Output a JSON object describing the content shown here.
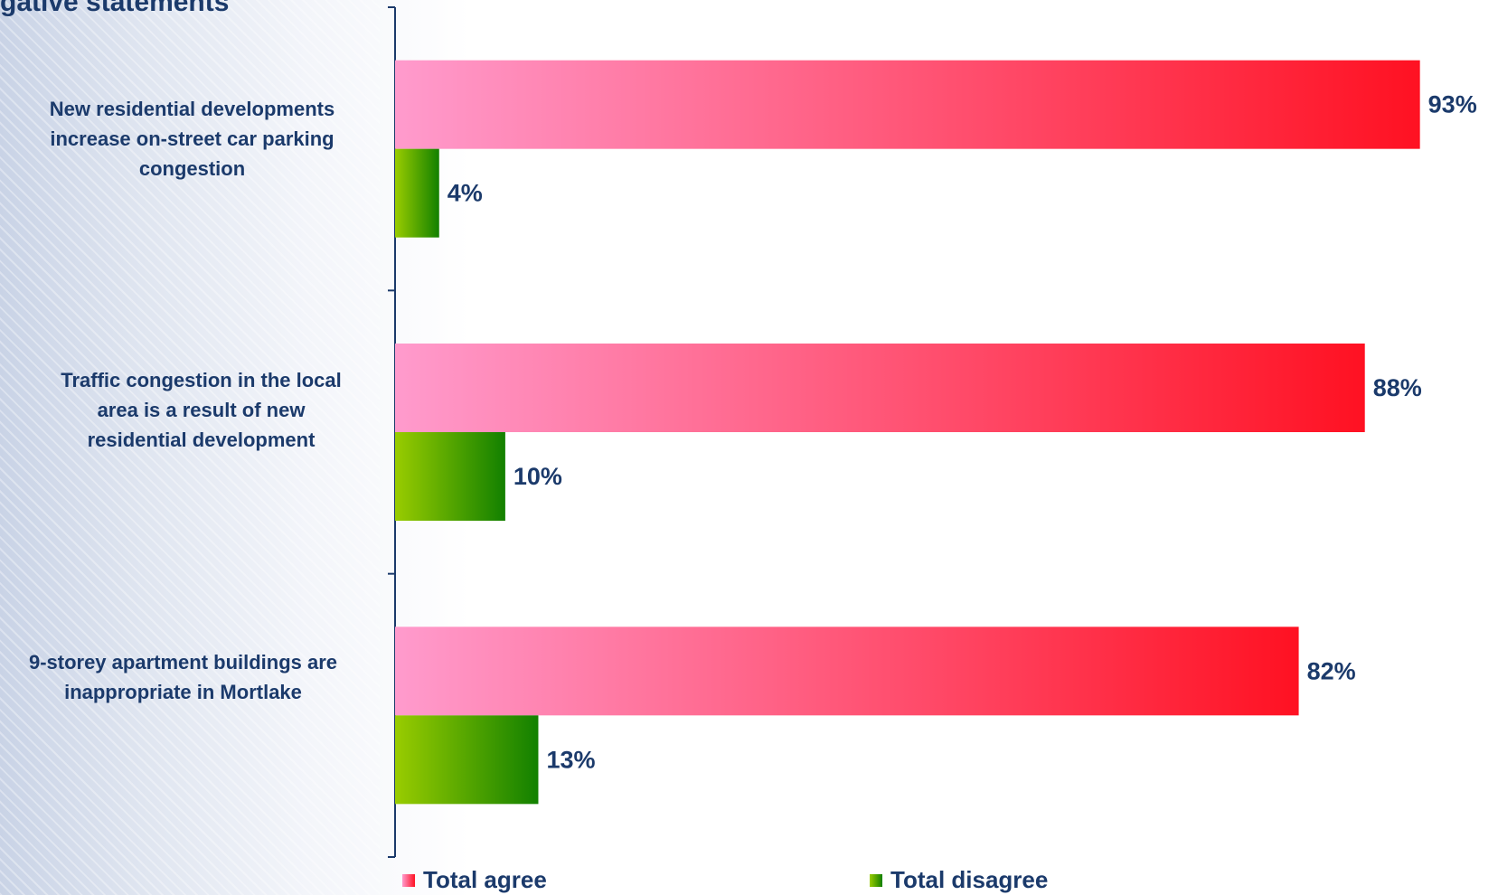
{
  "title": "gative statements",
  "chart_data": {
    "type": "bar",
    "orientation": "horizontal",
    "categories": [
      "New residential developments increase on-street car parking congestion",
      "Traffic congestion in the local area is a result of new residential development",
      "9-storey apartment buildings are inappropriate in Mortlake"
    ],
    "series": [
      {
        "name": "Total agree",
        "values": [
          93,
          88,
          82
        ],
        "labels": [
          "93%",
          "88%",
          "82%"
        ],
        "color_start": "#ff9bcd",
        "color_end": "#ff1122"
      },
      {
        "name": "Total disagree",
        "values": [
          4,
          10,
          13
        ],
        "labels": [
          "4%",
          "10%",
          "13%"
        ],
        "color_start": "#99cc00",
        "color_end": "#128000"
      }
    ],
    "xlim": [
      0,
      100
    ],
    "grid": false,
    "legend_position": "bottom",
    "axis_color": "#1b3a6b",
    "label_color": "#1b3a6b"
  },
  "category_lines": [
    [
      "New residential developments",
      "increase on-street car parking",
      "congestion"
    ],
    [
      "Traffic congestion in the local",
      "area is a result of new",
      "residential development"
    ],
    [
      "9-storey apartment buildings are",
      "inappropriate in Mortlake"
    ]
  ],
  "legend": [
    {
      "label": "Total agree",
      "icon": "pink-square-icon"
    },
    {
      "label": "Total disagree",
      "icon": "green-square-icon"
    }
  ]
}
